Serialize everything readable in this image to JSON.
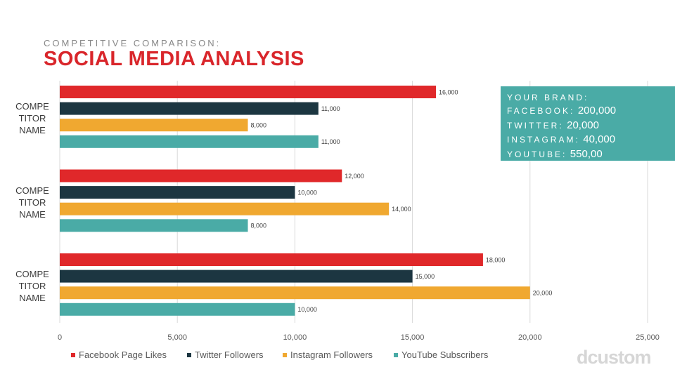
{
  "chart_data": {
    "type": "bar",
    "orientation": "horizontal",
    "subtitle": "COMPETITIVE COMPARISON:",
    "title": "SOCIAL MEDIA ANALYSIS",
    "categories": [
      "COMPE TITOR NAME",
      "COMPE TITOR NAME",
      "COMPE TITOR NAME"
    ],
    "series": [
      {
        "name": "Facebook Page Likes",
        "color": "#e0282a",
        "values": [
          16000,
          12000,
          18000
        ],
        "value_labels": [
          "16,000",
          "12,000",
          "18,000"
        ]
      },
      {
        "name": "Twitter Followers",
        "color": "#1c3641",
        "values": [
          11000,
          10000,
          15000
        ],
        "value_labels": [
          "11,000",
          "10,000",
          "15,000"
        ]
      },
      {
        "name": "Instagram Followers",
        "color": "#f0a830",
        "values": [
          8000,
          14000,
          20000
        ],
        "value_labels": [
          "8,000",
          "14,000",
          "20,000"
        ]
      },
      {
        "name": "YouTube Subscribers",
        "color": "#4aaba6",
        "values": [
          11000,
          8000,
          10000
        ],
        "value_labels": [
          "11,000",
          "8,000",
          "10,000"
        ]
      }
    ],
    "xlim": [
      0,
      25000
    ],
    "xticks": [
      0,
      {
        "value": 5000,
        "label": "5,000"
      },
      {
        "value": 10000,
        "label": "10,000"
      },
      {
        "value": 15000,
        "label": "15,000"
      },
      {
        "value": 20000,
        "label": "20,000"
      },
      {
        "value": 25000,
        "label": "25,000"
      }
    ],
    "grid": true,
    "legend": "bottom",
    "annotation": {
      "title": "YOUR BRAND:",
      "items": [
        {
          "label": "FACEBOOK:",
          "value": "200,000"
        },
        {
          "label": "TWITTER:",
          "value": "20,000"
        },
        {
          "label": "INSTAGRAM:",
          "value": "40,000"
        },
        {
          "label": "YOUTUBE:",
          "value": "550,00"
        }
      ]
    },
    "logo": "dcustom"
  }
}
